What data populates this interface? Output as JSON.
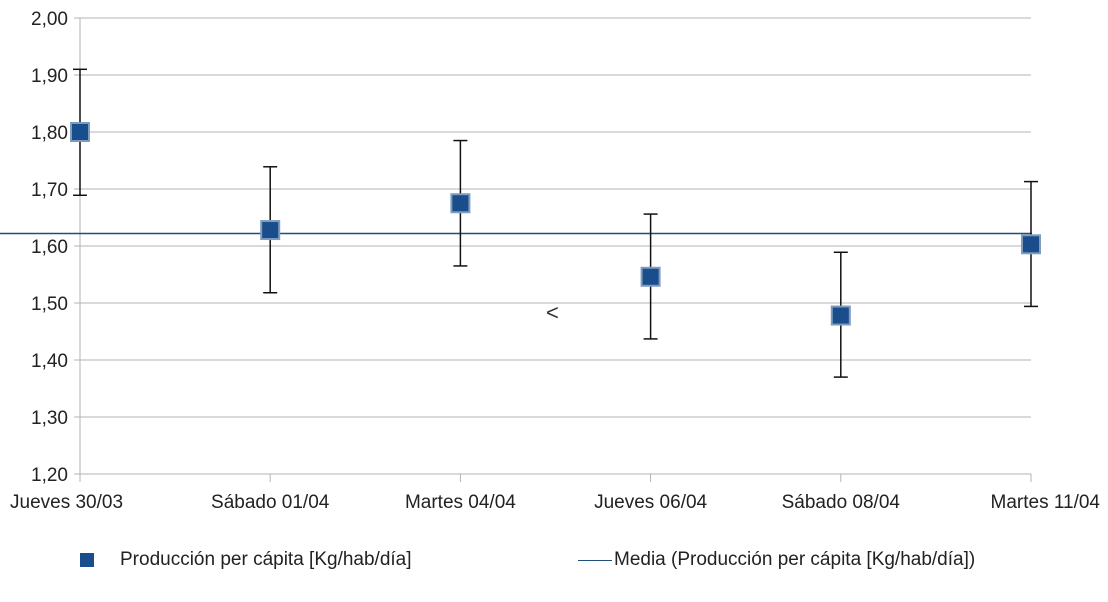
{
  "chart_data": {
    "type": "scatter",
    "categories": [
      "Jueves 30/03",
      "Sábado 01/04",
      "Martes 04/04",
      "Jueves 06/04",
      "Sábado 08/04",
      "Martes 11/04"
    ],
    "series": [
      {
        "name": "Producción per cápita [Kg/hab/día]",
        "values": [
          1.8,
          1.628,
          1.675,
          1.546,
          1.478,
          1.603
        ],
        "error_low": [
          1.689,
          1.518,
          1.565,
          1.437,
          1.37,
          1.494
        ],
        "error_high": [
          1.91,
          1.739,
          1.785,
          1.656,
          1.589,
          1.713
        ],
        "marker": "square",
        "color": "#1a4d8c"
      },
      {
        "name": "Media (Producción per cápita [Kg/hab/día])",
        "type": "hline",
        "value": 1.622,
        "color": "#1f4e79"
      }
    ],
    "yticks": [
      "1,20",
      "1,30",
      "1,40",
      "1,50",
      "1,60",
      "1,70",
      "1,80",
      "1,90",
      "2,00"
    ],
    "ylim": [
      1.2,
      2.0
    ],
    "grid": true,
    "legend_position": "bottom",
    "annotation": "<"
  },
  "legend": {
    "series1": "Producción per cápita [Kg/hab/día]",
    "series2": "Media (Producción per cápita [Kg/hab/día])"
  }
}
